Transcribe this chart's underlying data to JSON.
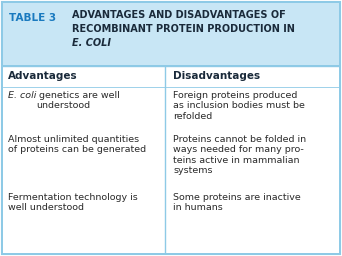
{
  "title_label": "TABLE 3",
  "title_line1": "ADVANTAGES AND DISADVANTAGES OF",
  "title_line2": "RECOMBINANT PROTEIN PRODUCTION IN",
  "title_line3": "E. COLI",
  "header_bg": "#c8e6f5",
  "body_bg": "#ffffff",
  "border_color": "#8ecae6",
  "divider_color": "#8ecae6",
  "title_label_color": "#1a7abf",
  "title_text_color": "#1a2a3a",
  "col_header_color": "#1a2a3a",
  "body_text_color": "#2a2a2a",
  "col_header_left": "Advantages",
  "col_header_right": "Disadvantages",
  "row1_left_italic": "E. coli",
  "row1_left_rest": " genetics are well\nunderstood",
  "row1_right": "Foreign proteins produced\nas inclusion bodies must be\nrefolded",
  "row2_left": "Almost unlimited quantities\nof proteins can be generated",
  "row2_right": "Proteins cannot be folded in\nways needed for many pro-\nteins active in mammalian\nsystems",
  "row3_left": "Fermentation technology is\nwell understood",
  "row3_right": "Some proteins are inactive\nin humans",
  "figsize": [
    3.42,
    2.56
  ],
  "dpi": 100
}
